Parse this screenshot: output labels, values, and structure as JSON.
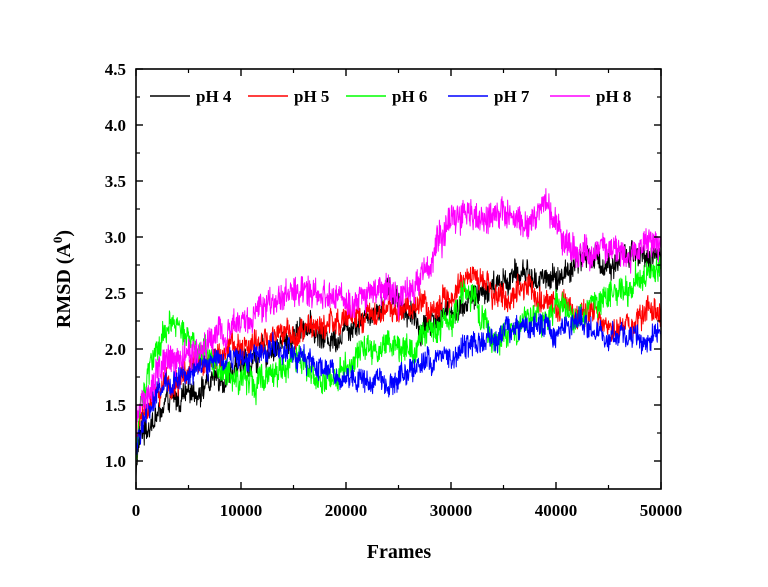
{
  "chart_data": {
    "type": "line",
    "title": "",
    "xlabel": "Frames",
    "ylabel_main": "RMSD (A",
    "ylabel_sup": "0",
    "ylabel_close": ")",
    "xlim": [
      0,
      50000
    ],
    "ylim": [
      0.75,
      4.5
    ],
    "xticks": [
      0,
      10000,
      20000,
      30000,
      40000,
      50000
    ],
    "xtick_labels": [
      "0",
      "10000",
      "20000",
      "30000",
      "40000",
      "50000"
    ],
    "yticks": [
      1.0,
      1.5,
      2.0,
      2.5,
      3.0,
      3.5,
      4.0,
      4.5
    ],
    "ytick_labels": [
      "1.0",
      "1.5",
      "2.0",
      "2.5",
      "3.0",
      "3.5",
      "4.0",
      "4.5"
    ],
    "grid": false,
    "legend_position": "top, single row inside plot",
    "series": [
      {
        "name": "pH 4",
        "color": "#000000",
        "noise": 0.12,
        "x": [
          0,
          300,
          1000,
          2000,
          3000,
          4000,
          5000,
          6000,
          7000,
          8000,
          9000,
          10000,
          11000,
          12000,
          13000,
          14000,
          15000,
          16000,
          17000,
          18000,
          19000,
          20000,
          21000,
          22000,
          23000,
          24000,
          25000,
          26000,
          27000,
          28000,
          29000,
          30000,
          31000,
          32000,
          33000,
          34000,
          35000,
          36000,
          37000,
          38000,
          39000,
          40000,
          41000,
          42000,
          43000,
          44000,
          45000,
          46000,
          47000,
          48000,
          49000,
          50000
        ],
        "y": [
          0.9,
          1.2,
          1.3,
          1.4,
          1.5,
          1.55,
          1.6,
          1.65,
          1.7,
          1.75,
          1.8,
          1.85,
          1.9,
          1.95,
          2.0,
          2.05,
          2.1,
          2.25,
          2.15,
          2.1,
          2.1,
          2.2,
          2.25,
          2.3,
          2.35,
          2.55,
          2.45,
          2.3,
          2.2,
          2.25,
          2.3,
          2.35,
          2.4,
          2.45,
          2.5,
          2.55,
          2.6,
          2.65,
          2.7,
          2.6,
          2.65,
          2.6,
          2.7,
          2.8,
          2.85,
          2.8,
          2.75,
          2.8,
          2.85,
          2.8,
          2.75,
          2.9
        ]
      },
      {
        "name": "pH 5",
        "color": "#ff0000",
        "noise": 0.12,
        "x": [
          0,
          300,
          1000,
          2000,
          3000,
          4000,
          5000,
          6000,
          7000,
          8000,
          9000,
          10000,
          11000,
          12000,
          13000,
          14000,
          15000,
          16000,
          17000,
          18000,
          19000,
          20000,
          21000,
          22000,
          23000,
          24000,
          25000,
          26000,
          27000,
          28000,
          29000,
          30000,
          31000,
          32000,
          33000,
          34000,
          35000,
          36000,
          37000,
          38000,
          39000,
          40000,
          41000,
          42000,
          43000,
          44000,
          45000,
          46000,
          47000,
          48000,
          49000,
          50000
        ],
        "y": [
          1.0,
          1.35,
          1.5,
          1.55,
          1.65,
          1.7,
          1.8,
          1.85,
          1.9,
          1.95,
          2.0,
          2.0,
          2.0,
          2.05,
          2.1,
          2.1,
          2.15,
          2.2,
          2.2,
          2.2,
          2.2,
          2.25,
          2.3,
          2.3,
          2.3,
          2.35,
          2.3,
          2.35,
          2.4,
          2.35,
          2.4,
          2.45,
          2.6,
          2.7,
          2.55,
          2.5,
          2.45,
          2.5,
          2.55,
          2.5,
          2.45,
          2.4,
          2.35,
          2.3,
          2.3,
          2.25,
          2.2,
          2.2,
          2.25,
          2.3,
          2.35,
          2.3
        ]
      },
      {
        "name": "pH 6",
        "color": "#00ff00",
        "noise": 0.13,
        "x": [
          0,
          300,
          1000,
          2000,
          3000,
          4000,
          5000,
          6000,
          7000,
          8000,
          9000,
          10000,
          11000,
          12000,
          13000,
          14000,
          15000,
          16000,
          17000,
          18000,
          19000,
          20000,
          21000,
          22000,
          23000,
          24000,
          25000,
          26000,
          27000,
          28000,
          29000,
          30000,
          31000,
          32000,
          33000,
          34000,
          35000,
          36000,
          37000,
          38000,
          39000,
          40000,
          41000,
          42000,
          43000,
          44000,
          45000,
          46000,
          47000,
          48000,
          49000,
          50000
        ],
        "y": [
          1.0,
          1.4,
          1.7,
          2.0,
          2.15,
          2.2,
          2.1,
          2.0,
          1.95,
          1.85,
          1.8,
          1.75,
          1.7,
          1.75,
          1.8,
          1.85,
          1.9,
          1.8,
          1.75,
          1.7,
          1.75,
          1.85,
          1.9,
          1.95,
          2.0,
          2.05,
          2.0,
          2.05,
          2.1,
          2.15,
          2.2,
          2.3,
          2.45,
          2.5,
          2.2,
          2.0,
          2.1,
          2.2,
          2.25,
          2.3,
          2.35,
          2.4,
          2.35,
          2.3,
          2.35,
          2.4,
          2.45,
          2.5,
          2.55,
          2.6,
          2.65,
          2.7
        ]
      },
      {
        "name": "pH 7",
        "color": "#0000ff",
        "noise": 0.11,
        "x": [
          0,
          300,
          1000,
          2000,
          3000,
          4000,
          5000,
          6000,
          7000,
          8000,
          9000,
          10000,
          11000,
          12000,
          13000,
          14000,
          15000,
          16000,
          17000,
          18000,
          19000,
          20000,
          21000,
          22000,
          23000,
          24000,
          25000,
          26000,
          27000,
          28000,
          29000,
          30000,
          31000,
          32000,
          33000,
          34000,
          35000,
          36000,
          37000,
          38000,
          39000,
          40000,
          41000,
          42000,
          43000,
          44000,
          45000,
          46000,
          47000,
          48000,
          49000,
          50000
        ],
        "y": [
          1.1,
          1.2,
          1.45,
          1.6,
          1.7,
          1.75,
          1.8,
          1.85,
          1.85,
          1.9,
          1.9,
          1.95,
          1.95,
          2.0,
          2.0,
          2.0,
          1.95,
          1.9,
          1.85,
          1.8,
          1.75,
          1.75,
          1.7,
          1.7,
          1.72,
          1.7,
          1.75,
          1.8,
          1.85,
          1.9,
          1.95,
          1.95,
          2.0,
          2.05,
          2.05,
          2.1,
          2.15,
          2.2,
          2.2,
          2.25,
          2.2,
          2.15,
          2.2,
          2.25,
          2.2,
          2.15,
          2.1,
          2.15,
          2.1,
          2.05,
          2.1,
          2.2
        ]
      },
      {
        "name": "pH 8",
        "color": "#ff00ff",
        "noise": 0.14,
        "x": [
          0,
          300,
          1000,
          2000,
          3000,
          4000,
          5000,
          6000,
          7000,
          8000,
          9000,
          10000,
          11000,
          12000,
          13000,
          14000,
          15000,
          16000,
          17000,
          18000,
          19000,
          20000,
          21000,
          22000,
          23000,
          24000,
          25000,
          26000,
          27000,
          28000,
          29000,
          30000,
          31000,
          32000,
          33000,
          34000,
          35000,
          36000,
          37000,
          38000,
          39000,
          40000,
          41000,
          42000,
          43000,
          44000,
          45000,
          46000,
          47000,
          48000,
          49000,
          50000
        ],
        "y": [
          1.4,
          1.55,
          1.65,
          1.8,
          1.85,
          1.9,
          1.95,
          2.0,
          2.05,
          2.1,
          2.2,
          2.3,
          2.3,
          2.35,
          2.4,
          2.5,
          2.55,
          2.6,
          2.55,
          2.5,
          2.45,
          2.4,
          2.4,
          2.45,
          2.5,
          2.55,
          2.45,
          2.5,
          2.6,
          2.75,
          2.95,
          3.15,
          3.25,
          3.2,
          3.1,
          3.2,
          3.25,
          3.15,
          3.1,
          3.15,
          3.3,
          3.1,
          2.95,
          2.85,
          2.8,
          2.85,
          2.9,
          2.85,
          2.85,
          2.9,
          2.95,
          2.95
        ]
      }
    ]
  }
}
